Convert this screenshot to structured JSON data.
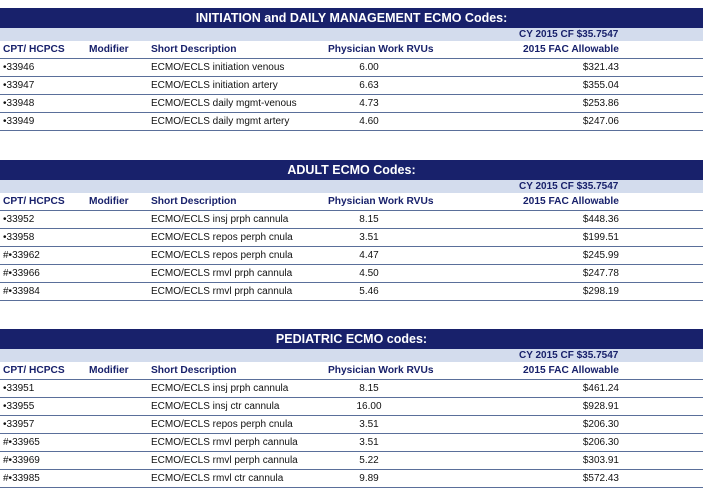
{
  "columns": {
    "code": "CPT/ HCPCS",
    "modifier": "Modifier",
    "description": "Short Description",
    "rvus": "Physician Work RVUs",
    "allowable": "2015 FAC Allowable"
  },
  "cy_label": "CY 2015   CF $35.7547",
  "sections": [
    {
      "title": "INITIATION and DAILY MANAGEMENT ECMO Codes:",
      "rows": [
        {
          "code": "•33946",
          "modifier": "",
          "description": "ECMO/ECLS initiation venous",
          "rvus": "6.00",
          "allowable": "$321.43"
        },
        {
          "code": "•33947",
          "modifier": "",
          "description": "ECMO/ECLS initiation artery",
          "rvus": "6.63",
          "allowable": "$355.04"
        },
        {
          "code": "•33948",
          "modifier": "",
          "description": "ECMO/ECLS daily mgmt-venous",
          "rvus": "4.73",
          "allowable": "$253.86"
        },
        {
          "code": "•33949",
          "modifier": "",
          "description": "ECMO/ECLS daily mgmt artery",
          "rvus": "4.60",
          "allowable": "$247.06"
        }
      ]
    },
    {
      "title": "ADULT ECMO Codes:",
      "rows": [
        {
          "code": "•33952",
          "modifier": "",
          "description": "ECMO/ECLS insj prph cannula",
          "rvus": "8.15",
          "allowable": "$448.36"
        },
        {
          "code": "•33958",
          "modifier": "",
          "description": "ECMO/ECLS repos perph cnula",
          "rvus": "3.51",
          "allowable": "$199.51"
        },
        {
          "code": "#•33962",
          "modifier": "",
          "description": "ECMO/ECLS repos perph cnula",
          "rvus": "4.47",
          "allowable": "$245.99"
        },
        {
          "code": "#•33966",
          "modifier": "",
          "description": "ECMO/ECLS rmvl prph cannula",
          "rvus": "4.50",
          "allowable": "$247.78"
        },
        {
          "code": "#•33984",
          "modifier": "",
          "description": "ECMO/ECLS rmvl prph cannula",
          "rvus": "5.46",
          "allowable": "$298.19"
        }
      ]
    },
    {
      "title": "PEDIATRIC ECMO codes:",
      "rows": [
        {
          "code": "•33951",
          "modifier": "",
          "description": "ECMO/ECLS insj prph cannula",
          "rvus": "8.15",
          "allowable": "$461.24"
        },
        {
          "code": "•33955",
          "modifier": "",
          "description": "ECMO/ECLS insj ctr cannula",
          "rvus": "16.00",
          "allowable": "$928.91"
        },
        {
          "code": "•33957",
          "modifier": "",
          "description": "ECMO/ECLS repos perph cnula",
          "rvus": "3.51",
          "allowable": "$206.30"
        },
        {
          "code": "#•33965",
          "modifier": "",
          "description": "ECMO/ECLS rmvl perph cannula",
          "rvus": "3.51",
          "allowable": "$206.30"
        },
        {
          "code": "#•33969",
          "modifier": "",
          "description": "ECMO/ECLS rmvl perph cannula",
          "rvus": "5.22",
          "allowable": "$303.91"
        },
        {
          "code": "#•33985",
          "modifier": "",
          "description": "ECMO/ECLS rmvl ctr cannula",
          "rvus": "9.89",
          "allowable": "$572.43"
        }
      ]
    }
  ],
  "colors": {
    "title_bg": "#18216b",
    "cy_bg": "#d3dced",
    "header_text": "#18216b",
    "rule": "#5a6f9a"
  }
}
